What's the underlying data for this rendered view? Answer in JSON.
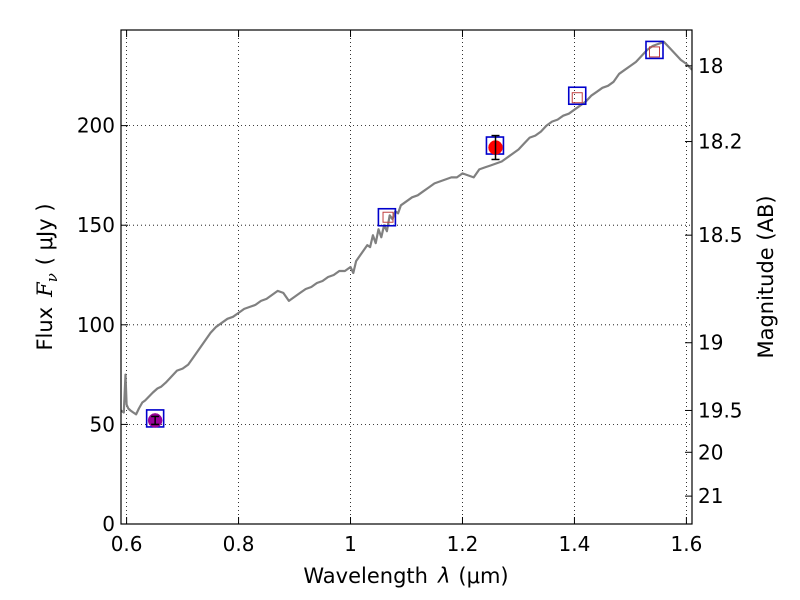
{
  "chart_data": {
    "type": "line",
    "title": "",
    "xlabel_prefix": "Wavelength",
    "xlabel_symbol": "λ",
    "xlabel_unit": "(μm)",
    "ylabel_prefix": "Flux",
    "ylabel_symbol": "F",
    "ylabel_sub": "ν",
    "ylabel_unit": "( μJy )",
    "y2label": "Magnitude (AB)",
    "xlim": [
      0.59,
      1.61
    ],
    "ylim": [
      0,
      248
    ],
    "grid": true,
    "x_ticks": [
      0.6,
      0.8,
      1.0,
      1.2,
      1.4,
      1.6
    ],
    "x_tick_labels": [
      "0.6",
      "0.8",
      "1",
      "1.2",
      "1.4",
      "1.6"
    ],
    "y_ticks": [
      0,
      50,
      100,
      150,
      200
    ],
    "y_tick_labels": [
      "0",
      "50",
      "100",
      "150",
      "200"
    ],
    "y2_ticks": [
      {
        "flux": 230,
        "label": "18"
      },
      {
        "flux": 192,
        "label": "18.2"
      },
      {
        "flux": 145,
        "label": "18.5"
      },
      {
        "flux": 91,
        "label": "19"
      },
      {
        "flux": 57,
        "label": "19.5"
      },
      {
        "flux": 36,
        "label": "20"
      },
      {
        "flux": 14,
        "label": "21"
      }
    ],
    "colors": {
      "spectrum": "#808080",
      "model_box": "#0000cc",
      "small_box": "#c04040",
      "red_point": "#ff0000",
      "purple_point": "#990099",
      "axis": "#000000",
      "grid": "#000000"
    },
    "series": [
      {
        "name": "spectrum",
        "x": [
          0.59,
          0.595,
          0.598,
          0.6,
          0.603,
          0.607,
          0.612,
          0.617,
          0.622,
          0.628,
          0.633,
          0.64,
          0.647,
          0.655,
          0.662,
          0.67,
          0.68,
          0.69,
          0.7,
          0.71,
          0.72,
          0.73,
          0.74,
          0.75,
          0.76,
          0.77,
          0.78,
          0.79,
          0.8,
          0.81,
          0.82,
          0.83,
          0.84,
          0.85,
          0.86,
          0.87,
          0.88,
          0.89,
          0.9,
          0.91,
          0.92,
          0.93,
          0.94,
          0.95,
          0.96,
          0.97,
          0.98,
          0.99,
          1.0,
          1.005,
          1.01,
          1.02,
          1.03,
          1.035,
          1.04,
          1.045,
          1.05,
          1.055,
          1.06,
          1.065,
          1.07,
          1.075,
          1.08,
          1.085,
          1.09,
          1.1,
          1.11,
          1.12,
          1.13,
          1.14,
          1.15,
          1.16,
          1.17,
          1.18,
          1.19,
          1.2,
          1.21,
          1.22,
          1.23,
          1.24,
          1.25,
          1.26,
          1.27,
          1.28,
          1.29,
          1.3,
          1.31,
          1.32,
          1.33,
          1.34,
          1.35,
          1.36,
          1.37,
          1.38,
          1.39,
          1.4,
          1.41,
          1.42,
          1.43,
          1.44,
          1.45,
          1.46,
          1.47,
          1.48,
          1.49,
          1.5,
          1.51,
          1.52,
          1.53,
          1.54,
          1.55,
          1.56,
          1.57,
          1.58,
          1.59,
          1.6,
          1.61
        ],
        "y": [
          57,
          56,
          75,
          60,
          58,
          57,
          56,
          55,
          58,
          61,
          62,
          64,
          66,
          68,
          69,
          71,
          74,
          77,
          78,
          80,
          84,
          88,
          92,
          96,
          99,
          101,
          103,
          104,
          106,
          108,
          109,
          110,
          112,
          113,
          115,
          117,
          116,
          112,
          114,
          116,
          118,
          119,
          121,
          122,
          124,
          125,
          127,
          127,
          129,
          126,
          132,
          136,
          140,
          139,
          145,
          141,
          148,
          144,
          150,
          147,
          155,
          153,
          157,
          156,
          160,
          162,
          164,
          165,
          167,
          169,
          171,
          172,
          173,
          174,
          174,
          176,
          175,
          174,
          178,
          179,
          180,
          181,
          182,
          184,
          186,
          188,
          191,
          194,
          195,
          197,
          200,
          202,
          203,
          205,
          206,
          208,
          210,
          212,
          215,
          217,
          219,
          220,
          222,
          226,
          228,
          230,
          232,
          235,
          238,
          240,
          241,
          242,
          239,
          236,
          233,
          231,
          228
        ]
      }
    ],
    "box_markers": [
      {
        "x": 0.651,
        "y": 53
      },
      {
        "x": 1.065,
        "y": 154
      },
      {
        "x": 1.258,
        "y": 190
      },
      {
        "x": 1.405,
        "y": 215
      },
      {
        "x": 1.543,
        "y": 238
      }
    ],
    "small_box_markers": [
      {
        "x": 1.067,
        "y": 154
      },
      {
        "x": 1.405,
        "y": 214
      },
      {
        "x": 1.543,
        "y": 237
      }
    ],
    "points": [
      {
        "x": 1.259,
        "y": 189,
        "err": 6,
        "color": "red_point"
      },
      {
        "x": 0.651,
        "y": 52,
        "err": 2,
        "color": "purple_point"
      }
    ]
  }
}
